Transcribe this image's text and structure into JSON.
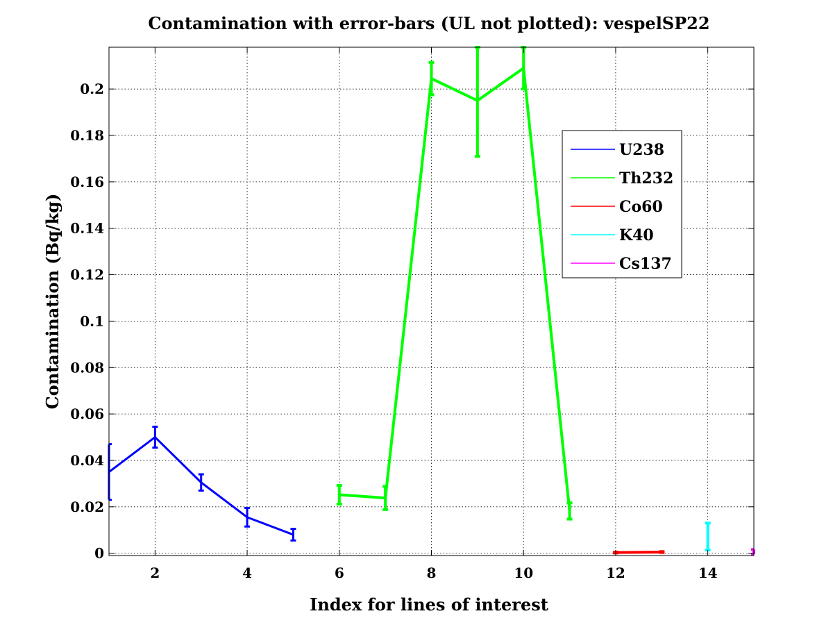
{
  "chart_data": {
    "type": "line",
    "title": "Contamination with error-bars (UL not plotted): vespelSP22",
    "xlabel": "Index for lines of interest",
    "ylabel": "Contamination (Bq/kg)",
    "xlim": [
      1,
      15
    ],
    "ylim": [
      -0.001,
      0.218
    ],
    "xticks": [
      2,
      4,
      6,
      8,
      10,
      12,
      14
    ],
    "yticks": [
      0,
      0.02,
      0.04,
      0.06,
      0.08,
      0.1,
      0.12,
      0.14,
      0.16,
      0.18,
      0.2
    ],
    "ytick_labels": [
      "0",
      "0.02",
      "0.04",
      "0.06",
      "0.08",
      "0.1",
      "0.12",
      "0.14",
      "0.16",
      "0.18",
      "0.2"
    ],
    "grid": true,
    "legend_position": "upper-right",
    "series": [
      {
        "name": "U238",
        "color": "#0000ff",
        "x": [
          1,
          2,
          3,
          4,
          5
        ],
        "y": [
          0.035,
          0.05,
          0.0305,
          0.0155,
          0.008
        ],
        "err": [
          0.012,
          0.0045,
          0.0035,
          0.004,
          0.0025
        ]
      },
      {
        "name": "Th232",
        "color": "#00ff00",
        "x": [
          6,
          7,
          8,
          9,
          10,
          11
        ],
        "y": [
          0.0252,
          0.0238,
          0.2045,
          0.195,
          0.209,
          0.0182
        ],
        "err": [
          0.004,
          0.005,
          0.007,
          0.024,
          0.009,
          0.0035
        ]
      },
      {
        "name": "Co60",
        "color": "#ff0000",
        "x": [
          12,
          13
        ],
        "y": [
          0.0003,
          0.0005
        ],
        "err": [
          0.0002,
          0.0002
        ]
      },
      {
        "name": "K40",
        "color": "#00ffff",
        "x": [
          14
        ],
        "y": [
          0.0072
        ],
        "err": [
          0.0058
        ]
      },
      {
        "name": "Cs137",
        "color": "#ff00ff",
        "x": [
          15
        ],
        "y": [
          0.0006
        ],
        "err": [
          0.001
        ]
      }
    ]
  }
}
